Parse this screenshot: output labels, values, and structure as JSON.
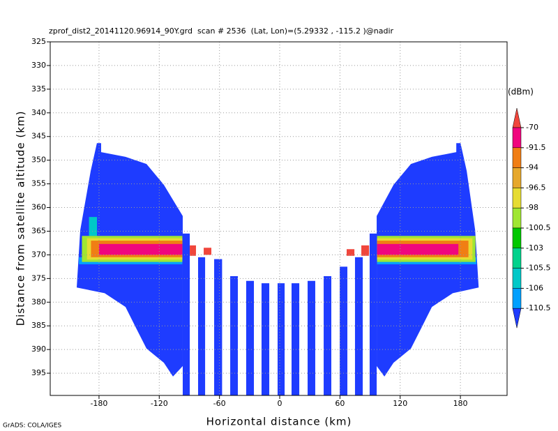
{
  "chart_data": {
    "type": "field",
    "title": "zprof_dist2_20141120.96914_90Y.grd  scan # 2536  (Lat, Lon)=(5.29332 , -115.2 )@nadir",
    "xlabel": "Horizontal distance (km)",
    "ylabel": "Distance from satellite altitude (km)",
    "credit": "GrADS: COLA/IGES",
    "xlim": [
      -228.6,
      226.5
    ],
    "xticks": [
      -180,
      -120,
      -60,
      0,
      60,
      120,
      180
    ],
    "ylim": [
      325,
      399.7
    ],
    "yticks": [
      325,
      330,
      335,
      340,
      345,
      350,
      355,
      360,
      365,
      370,
      375,
      380,
      385,
      390,
      395
    ],
    "y_reversed": true,
    "grid": true,
    "colorbar": {
      "unit": "(dBm)",
      "levels": [
        -70,
        -91.5,
        -94,
        -96.5,
        -98,
        -100.5,
        -103,
        -105.5,
        -106,
        -110.5
      ],
      "colors": [
        "#f0463c",
        "#f0067e",
        "#f07e14",
        "#e6a82c",
        "#e6dc32",
        "#a0e632",
        "#00c800",
        "#00d28c",
        "#00c8c8",
        "#00a0ff",
        "#1e3cff"
      ]
    },
    "regions": [
      {
        "value": -112,
        "x": [
          -182.1,
          -177.9,
          -177.9,
          -153.6,
          -132.7,
          -115.4,
          -96.6,
          -96.6,
          -106.3,
          -115.4,
          -132.7,
          -143.2,
          -153.6,
          -174.4,
          -202.2,
          -198.7,
          -188.3
        ],
        "y": [
          346.4,
          346.4,
          348.3,
          349.3,
          350.8,
          355.2,
          361.8,
          393.5,
          395.7,
          392.8,
          389.8,
          385.4,
          381.0,
          378.1,
          376.9,
          364.8,
          352.3
        ]
      },
      {
        "value": -112,
        "x": [
          180.1,
          175.9,
          175.9,
          151.6,
          130.7,
          113.4,
          96.6,
          96.6,
          104.3,
          113.4,
          130.7,
          141.2,
          151.6,
          172.4,
          198.2,
          194.7,
          186.3
        ],
        "y": [
          346.4,
          346.4,
          348.3,
          349.3,
          350.8,
          355.2,
          361.8,
          393.5,
          395.7,
          392.8,
          389.8,
          385.4,
          381.0,
          378.1,
          376.9,
          364.8,
          352.3
        ]
      }
    ],
    "cells": [
      {
        "value": -112,
        "x": [
          -96.6,
          -89.6
        ],
        "y": [
          365.5,
          399.7
        ]
      },
      {
        "value": -112,
        "x": [
          -81.3,
          -74.3
        ],
        "y": [
          370.5,
          399.7
        ]
      },
      {
        "value": -112,
        "x": [
          -65.3,
          -57.4
        ],
        "y": [
          370.9,
          399.7
        ]
      },
      {
        "value": -112,
        "x": [
          -49.3,
          -41.7
        ],
        "y": [
          374.5,
          399.7
        ]
      },
      {
        "value": -112,
        "x": [
          -33.4,
          -25.7
        ],
        "y": [
          375.5,
          399.7
        ]
      },
      {
        "value": -112,
        "x": [
          -18.1,
          -10.4
        ],
        "y": [
          376,
          399.7
        ]
      },
      {
        "value": -112,
        "x": [
          -2.1,
          4.9
        ],
        "y": [
          376,
          399.7
        ]
      },
      {
        "value": -112,
        "x": [
          11.8,
          19.5
        ],
        "y": [
          376,
          399.7
        ]
      },
      {
        "value": -112,
        "x": [
          27.8,
          35.4
        ],
        "y": [
          375.5,
          399.7
        ]
      },
      {
        "value": -112,
        "x": [
          43.8,
          51.4
        ],
        "y": [
          374.5,
          399.7
        ]
      },
      {
        "value": -112,
        "x": [
          59.8,
          67.4
        ],
        "y": [
          372.5,
          399.7
        ]
      },
      {
        "value": -112,
        "x": [
          75,
          82.7
        ],
        "y": [
          370.5,
          399.7
        ]
      },
      {
        "value": -112,
        "x": [
          89.6,
          96.6
        ],
        "y": [
          365.5,
          399.7
        ]
      },
      {
        "value": -108,
        "x": [
          -200,
          -97
        ],
        "y": [
          370.5,
          372
        ]
      },
      {
        "value": -108,
        "x": [
          97,
          196
        ],
        "y": [
          370.5,
          372
        ]
      },
      {
        "value": -105.8,
        "x": [
          -190,
          -182
        ],
        "y": [
          362,
          366
        ]
      },
      {
        "value": -99.5,
        "x": [
          -197,
          -97
        ],
        "y": [
          366,
          371.5
        ]
      },
      {
        "value": -99.5,
        "x": [
          97,
          195
        ],
        "y": [
          366,
          371.5
        ]
      },
      {
        "value": -97,
        "x": [
          -192,
          -97
        ],
        "y": [
          366.5,
          371
        ]
      },
      {
        "value": -97,
        "x": [
          97,
          192
        ],
        "y": [
          366.5,
          371
        ]
      },
      {
        "value": -93,
        "x": [
          -188,
          -97
        ],
        "y": [
          367,
          370.5
        ]
      },
      {
        "value": -93,
        "x": [
          97,
          188
        ],
        "y": [
          367,
          370.5
        ]
      },
      {
        "value": -85,
        "x": [
          -180,
          -97
        ],
        "y": [
          367.7,
          370
        ]
      },
      {
        "value": -85,
        "x": [
          97,
          178
        ],
        "y": [
          367.7,
          370
        ]
      },
      {
        "value": -68,
        "x": [
          -89.6,
          -83.4
        ],
        "y": [
          368,
          370.2
        ]
      },
      {
        "value": -68,
        "x": [
          -75.7,
          -68.1
        ],
        "y": [
          368.5,
          370
        ]
      },
      {
        "value": -68,
        "x": [
          66.7,
          74.4
        ],
        "y": [
          368.8,
          370.2
        ]
      },
      {
        "value": -68,
        "x": [
          81.3,
          89
        ],
        "y": [
          368,
          370.2
        ]
      }
    ]
  }
}
